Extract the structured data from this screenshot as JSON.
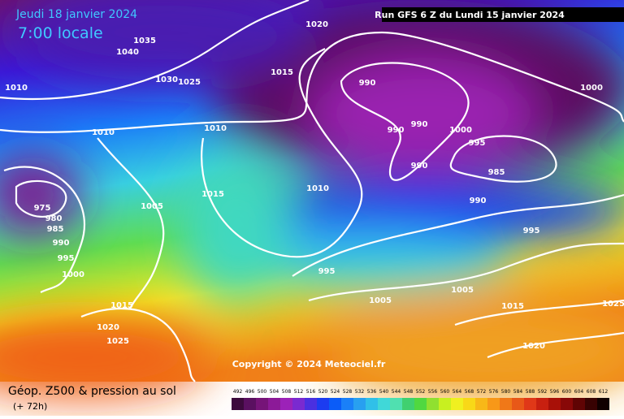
{
  "header": {
    "date": "Jeudi 18 janvier 2024",
    "time": "7:00 locale",
    "run": "Run GFS 6 Z du Lundi 15 janvier 2024"
  },
  "isobar_labels": [
    "1035",
    "1040",
    "1030",
    "1025",
    "1020",
    "1015",
    "1010",
    "1010",
    "1010",
    "990",
    "990",
    "990",
    "1000",
    "995",
    "990",
    "985",
    "1000",
    "1015",
    "1010",
    "990",
    "1005",
    "975",
    "980",
    "985",
    "990",
    "995",
    "1000",
    "995",
    "995",
    "1005",
    "1005",
    "1015",
    "1015",
    "1025",
    "1020",
    "1025",
    "1020"
  ],
  "copyright": "Copyright © 2024 Meteociel.fr",
  "footer": {
    "title": "Géop. Z500 & pression au sol",
    "lead": "(+ 72h)"
  },
  "legend": {
    "values": [
      492,
      496,
      500,
      504,
      508,
      512,
      516,
      520,
      524,
      528,
      532,
      536,
      540,
      544,
      548,
      552,
      556,
      560,
      564,
      568,
      572,
      576,
      580,
      584,
      588,
      592,
      596,
      600,
      604,
      608,
      612
    ],
    "colors": [
      "#3c0a3c",
      "#5a1060",
      "#761478",
      "#8c1a98",
      "#9c22b8",
      "#7a2ad0",
      "#4a30e0",
      "#1c3cf0",
      "#0a5cf8",
      "#1a80f8",
      "#28a0f0",
      "#30c0e8",
      "#40d8d8",
      "#50e0b0",
      "#40d070",
      "#50d840",
      "#90e030",
      "#c8f020",
      "#f0f020",
      "#f8d818",
      "#f8b818",
      "#f89818",
      "#f07818",
      "#e85818",
      "#e03818",
      "#c82010",
      "#a81008",
      "#880808",
      "#600404",
      "#380202",
      "#100000"
    ]
  }
}
